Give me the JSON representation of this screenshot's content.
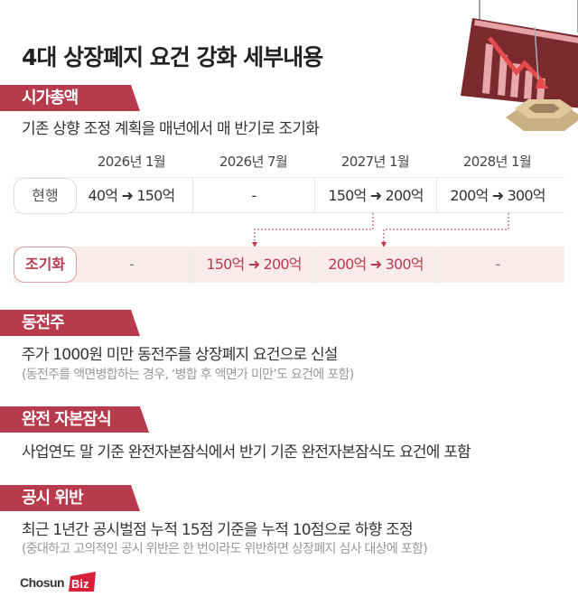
{
  "title": "4대 상장폐지 요건 강화 세부내용",
  "sections": [
    {
      "header": "시가총액",
      "text": "기존 상향 조정 계획을 매년에서 매 반기로 조기화"
    },
    {
      "header": "동전주",
      "text": "주가 1000원 미만 동전주를 상장폐지 요건으로 신설",
      "note": "(동전주를 액면병합하는 경우, ‘병합 후 액면가 미만’도 요건에 포함)"
    },
    {
      "header": "완전 자본잠식",
      "text": "사업연도 말 기준 완전자본잠식에서 반기 기준 완전자본잠식도 요건에 포함"
    },
    {
      "header": "공시 위반",
      "text": "최근 1년간 공시벌점 누적 15점 기준을 누적 10점으로 하향 조정",
      "note": "(중대하고 고의적인 공시 위반은 한 번이라도 위반하면 상장폐지 심사 대상에 포함)"
    }
  ],
  "table": {
    "columns": [
      "2026년 1월",
      "2026년 7월",
      "2027년 1월",
      "2028년 1월"
    ],
    "rows": [
      {
        "label": "현행",
        "cells": [
          "40억 ➜ 150억",
          "-",
          "150억 ➜ 200억",
          "200억 ➜ 300억"
        ]
      },
      {
        "label": "조기화",
        "cells": [
          "-",
          "150억 ➜ 200억",
          "200억 ➜ 300억",
          "-"
        ]
      }
    ]
  },
  "logo": {
    "text": "ChosunBiz"
  },
  "colors": {
    "accent": "#b73b4c",
    "highlight_row": "#f9eaec"
  }
}
